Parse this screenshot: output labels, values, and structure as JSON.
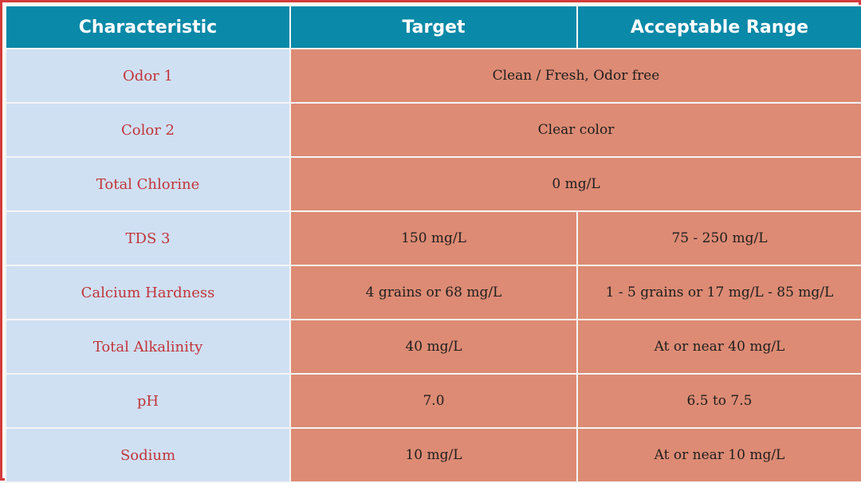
{
  "table": {
    "headers": [
      "Characteristic",
      "Target",
      "Acceptable Range"
    ],
    "rows": [
      {
        "characteristic": "Odor 1",
        "merged": "Clean / Fresh, Odor free"
      },
      {
        "characteristic": "Color 2",
        "merged": "Clear color"
      },
      {
        "characteristic": "Total Chlorine",
        "merged": "0 mg/L"
      },
      {
        "characteristic": "TDS 3",
        "target": "150 mg/L",
        "range": "75 - 250 mg/L"
      },
      {
        "characteristic": "Calcium Hardness",
        "target": "4 grains or 68 mg/L",
        "range": "1 - 5 grains or 17 mg/L - 85 mg/L"
      },
      {
        "characteristic": "Total Alkalinity",
        "target": "40 mg/L",
        "range": "At or near 40 mg/L"
      },
      {
        "characteristic": "pH",
        "target": "7.0",
        "range": "6.5 to 7.5"
      },
      {
        "characteristic": "Sodium",
        "target": "10 mg/L",
        "range": "At or near 10 mg/L"
      }
    ]
  },
  "colors": {
    "header_bg": "#0a89a8",
    "characteristic_bg": "#cfe0f3",
    "characteristic_text": "#c2343a",
    "value_bg": "#dd8b74",
    "frame_border": "#d33a3a"
  }
}
